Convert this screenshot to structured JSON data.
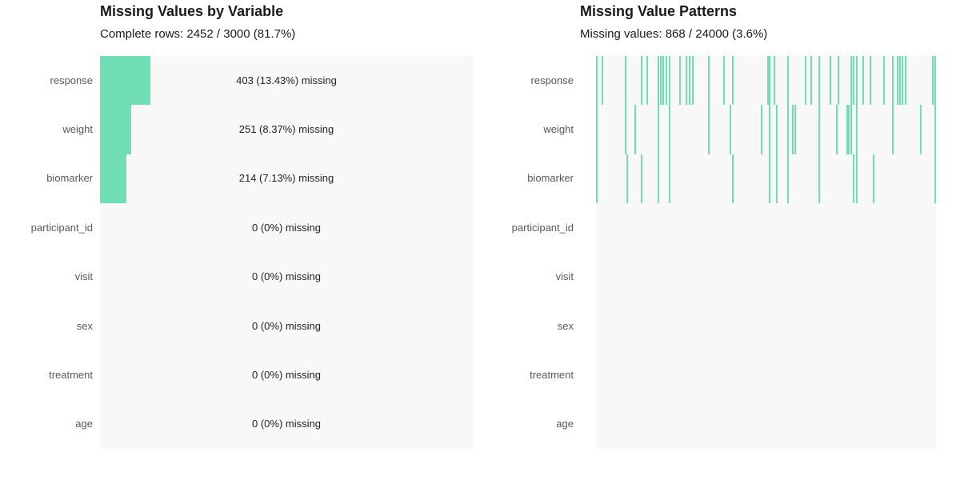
{
  "colors": {
    "accent": "#71dfb6",
    "panel_bg": "#f8f8f8",
    "axis_label": "#595959",
    "title_text": "#1a1a1a",
    "value_text": "#222222"
  },
  "chart_data": [
    {
      "type": "bar",
      "panel": "left",
      "title": "Missing Values by Variable",
      "subtitle": "Complete rows: 2452 / 3000 (81.7%)",
      "orientation": "horizontal",
      "categories": [
        "response",
        "weight",
        "biomarker",
        "participant_id",
        "visit",
        "sex",
        "treatment",
        "age"
      ],
      "values_pct": [
        13.43,
        8.37,
        7.13,
        0,
        0,
        0,
        0,
        0
      ],
      "missing_counts": [
        403,
        251,
        214,
        0,
        0,
        0,
        0,
        0
      ],
      "bar_labels": [
        "403 (13.43%) missing",
        "251 (8.37%) missing",
        "214 (7.13%) missing",
        "0 (0%) missing",
        "0 (0%) missing",
        "0 (0%) missing",
        "0 (0%) missing",
        "0 (0%) missing"
      ],
      "xlim": [
        0,
        100
      ],
      "grid": false,
      "legend": false
    },
    {
      "type": "heatmap",
      "panel": "right",
      "title": "Missing Value Patterns",
      "subtitle": "Missing values: 868 / 24000 (3.6%)",
      "categories": [
        "response",
        "weight",
        "biomarker",
        "participant_id",
        "visit",
        "sex",
        "treatment",
        "age"
      ],
      "total_missing": 868,
      "total_cells": 24000,
      "missing_pct": 3.6,
      "grid": false,
      "legend": false,
      "missing_marks": [
        {
          "x": 0.0,
          "vars": [
            "response",
            "weight",
            "biomarker"
          ]
        },
        {
          "x": 0.016,
          "vars": [
            "response"
          ]
        },
        {
          "x": 0.085,
          "vars": [
            "response",
            "weight"
          ]
        },
        {
          "x": 0.089,
          "vars": [
            "biomarker"
          ]
        },
        {
          "x": 0.113,
          "vars": [
            "weight"
          ]
        },
        {
          "x": 0.132,
          "vars": [
            "response",
            "biomarker"
          ]
        },
        {
          "x": 0.148,
          "vars": [
            "response"
          ]
        },
        {
          "x": 0.181,
          "vars": [
            "response",
            "weight",
            "biomarker"
          ]
        },
        {
          "x": 0.188,
          "vars": [
            "response"
          ]
        },
        {
          "x": 0.195,
          "vars": [
            "response"
          ]
        },
        {
          "x": 0.205,
          "vars": [
            "response"
          ]
        },
        {
          "x": 0.214,
          "vars": [
            "response",
            "weight",
            "biomarker"
          ]
        },
        {
          "x": 0.245,
          "vars": [
            "response"
          ]
        },
        {
          "x": 0.264,
          "vars": [
            "response"
          ]
        },
        {
          "x": 0.273,
          "vars": [
            "response"
          ]
        },
        {
          "x": 0.282,
          "vars": [
            "response"
          ]
        },
        {
          "x": 0.329,
          "vars": [
            "response",
            "weight"
          ]
        },
        {
          "x": 0.374,
          "vars": [
            "response"
          ]
        },
        {
          "x": 0.393,
          "vars": [
            "weight"
          ]
        },
        {
          "x": 0.4,
          "vars": [
            "response",
            "biomarker"
          ]
        },
        {
          "x": 0.485,
          "vars": [
            "weight"
          ]
        },
        {
          "x": 0.504,
          "vars": [
            "response"
          ]
        },
        {
          "x": 0.508,
          "vars": [
            "response",
            "weight",
            "biomarker"
          ]
        },
        {
          "x": 0.522,
          "vars": [
            "response"
          ]
        },
        {
          "x": 0.529,
          "vars": [
            "weight",
            "biomarker"
          ]
        },
        {
          "x": 0.562,
          "vars": [
            "response",
            "weight",
            "biomarker"
          ]
        },
        {
          "x": 0.576,
          "vars": [
            "weight"
          ]
        },
        {
          "x": 0.584,
          "vars": [
            "weight"
          ]
        },
        {
          "x": 0.614,
          "vars": [
            "response"
          ]
        },
        {
          "x": 0.631,
          "vars": [
            "response"
          ]
        },
        {
          "x": 0.654,
          "vars": [
            "response",
            "weight",
            "biomarker"
          ]
        },
        {
          "x": 0.687,
          "vars": [
            "response"
          ]
        },
        {
          "x": 0.706,
          "vars": [
            "weight"
          ]
        },
        {
          "x": 0.711,
          "vars": [
            "response"
          ]
        },
        {
          "x": 0.736,
          "vars": [
            "weight"
          ]
        },
        {
          "x": 0.741,
          "vars": [
            "weight"
          ]
        },
        {
          "x": 0.748,
          "vars": [
            "response",
            "weight"
          ]
        },
        {
          "x": 0.755,
          "vars": [
            "response",
            "biomarker"
          ]
        },
        {
          "x": 0.765,
          "vars": [
            "response",
            "weight",
            "biomarker"
          ]
        },
        {
          "x": 0.784,
          "vars": [
            "response"
          ]
        },
        {
          "x": 0.805,
          "vars": [
            "response"
          ]
        },
        {
          "x": 0.814,
          "vars": [
            "biomarker"
          ]
        },
        {
          "x": 0.845,
          "vars": [
            "response"
          ]
        },
        {
          "x": 0.871,
          "vars": [
            "response",
            "weight"
          ]
        },
        {
          "x": 0.885,
          "vars": [
            "response"
          ]
        },
        {
          "x": 0.892,
          "vars": [
            "response"
          ]
        },
        {
          "x": 0.899,
          "vars": [
            "response"
          ]
        },
        {
          "x": 0.908,
          "vars": [
            "response"
          ]
        },
        {
          "x": 0.953,
          "vars": [
            "weight"
          ]
        },
        {
          "x": 0.988,
          "vars": [
            "response"
          ]
        },
        {
          "x": 0.998,
          "vars": [
            "response",
            "weight",
            "biomarker"
          ]
        }
      ]
    }
  ]
}
